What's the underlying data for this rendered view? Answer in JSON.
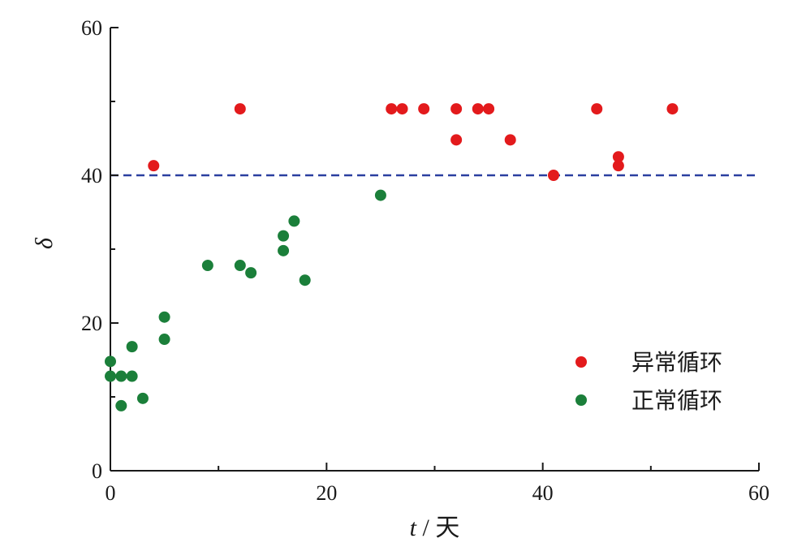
{
  "chart_data": {
    "type": "scatter",
    "xlabel_var": "t",
    "xlabel_sep": " / ",
    "xlabel_unit": "天",
    "ylabel": "δ",
    "xlim": [
      0,
      60
    ],
    "ylim": [
      0,
      60
    ],
    "x_ticks": [
      "0",
      "20",
      "40",
      "60"
    ],
    "y_ticks": [
      "0",
      "20",
      "40",
      "60"
    ],
    "threshold": {
      "y": 40,
      "style": "dashed",
      "color": "#2b3fa0"
    },
    "legend_position": "bottom-right",
    "series": [
      {
        "name": "异常循环",
        "color": "#e31a1c",
        "points": [
          [
            4,
            41.3
          ],
          [
            12,
            49
          ],
          [
            26,
            49
          ],
          [
            27,
            49
          ],
          [
            29,
            49
          ],
          [
            32,
            49
          ],
          [
            32,
            44.8
          ],
          [
            34,
            49
          ],
          [
            35,
            49
          ],
          [
            37,
            44.8
          ],
          [
            41,
            40
          ],
          [
            45,
            49
          ],
          [
            47,
            42.5
          ],
          [
            47,
            41.3
          ],
          [
            52,
            49
          ]
        ]
      },
      {
        "name": "正常循环",
        "color": "#1b7f3a",
        "points": [
          [
            0,
            14.8
          ],
          [
            0,
            12.8
          ],
          [
            1,
            12.8
          ],
          [
            2,
            12.8
          ],
          [
            1,
            8.8
          ],
          [
            2,
            16.8
          ],
          [
            3,
            9.8
          ],
          [
            5,
            20.8
          ],
          [
            5,
            17.8
          ],
          [
            9,
            27.8
          ],
          [
            12,
            27.8
          ],
          [
            13,
            26.8
          ],
          [
            16,
            31.8
          ],
          [
            16,
            29.8
          ],
          [
            17,
            33.8
          ],
          [
            18,
            25.8
          ],
          [
            25,
            37.3
          ]
        ]
      }
    ]
  }
}
